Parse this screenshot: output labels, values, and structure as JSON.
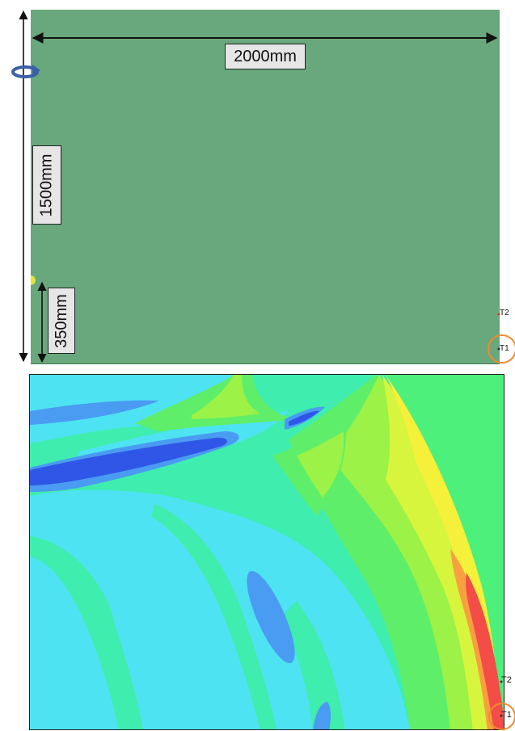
{
  "geometry": {
    "width_label": "2000mm",
    "height_label": "1500mm",
    "source_height_label": "350mm",
    "probes": [
      "T2",
      "T1"
    ],
    "colors": {
      "domain": "#68a87c",
      "dimension_box": "#e6e6e6",
      "highlight_ring": "#f08a30",
      "rotation_arrow": "#3b5fa8",
      "source_marker": "#e8e23a"
    }
  },
  "contour": {
    "probes": [
      "T2",
      "T1"
    ],
    "colors": {
      "background": "#4ee3f2",
      "outer_field": "#4cf07a",
      "band_1": "#3fedae",
      "band_2": "#5fee6a",
      "band_3": "#9cf246",
      "band_4": "#d8f53e",
      "band_5": "#f5f03a",
      "band_6": "#f7a040",
      "band_7": "#f44c46",
      "low_1": "#4a9bf2",
      "low_2": "#2f56e6"
    }
  }
}
